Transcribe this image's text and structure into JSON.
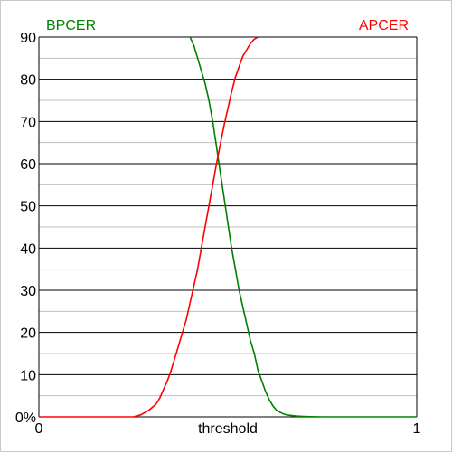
{
  "chart_data": {
    "type": "line",
    "title": "",
    "xlabel": "threshold",
    "ylabel": "",
    "xlim": [
      0,
      1
    ],
    "ylim": [
      0,
      90
    ],
    "x_ticks": [
      {
        "value": 0,
        "label": "0"
      },
      {
        "value": 1,
        "label": "1"
      }
    ],
    "y_ticks": [
      {
        "value": 0,
        "label": "0%"
      },
      {
        "value": 10,
        "label": "10"
      },
      {
        "value": 20,
        "label": "20"
      },
      {
        "value": 30,
        "label": "30"
      },
      {
        "value": 40,
        "label": "40"
      },
      {
        "value": 50,
        "label": "50"
      },
      {
        "value": 60,
        "label": "60"
      },
      {
        "value": 70,
        "label": "70"
      },
      {
        "value": 80,
        "label": "80"
      },
      {
        "value": 90,
        "label": "90"
      }
    ],
    "grid": {
      "major_step": 10,
      "minor_step": 5,
      "major_color": "#000000",
      "minor_color": "#bfbfbf"
    },
    "legend_placement": "top-corners",
    "series": [
      {
        "name": "BPCER",
        "color": "#008000",
        "x": [
          0.4,
          0.41,
          0.42,
          0.43,
          0.44,
          0.45,
          0.46,
          0.47,
          0.48,
          0.49,
          0.5,
          0.51,
          0.52,
          0.53,
          0.54,
          0.55,
          0.56,
          0.57,
          0.58,
          0.59,
          0.6,
          0.61,
          0.62,
          0.63,
          0.64,
          0.65,
          0.66,
          0.67,
          0.68,
          0.7,
          0.72,
          0.75,
          1.0
        ],
        "values": [
          90,
          88,
          85,
          82,
          79,
          75,
          70,
          64,
          58,
          52,
          46,
          40,
          35,
          30,
          26,
          22,
          18,
          15,
          11,
          8.5,
          6,
          4,
          2.5,
          1.5,
          1,
          0.6,
          0.4,
          0.3,
          0.2,
          0.1,
          0.05,
          0,
          0
        ]
      },
      {
        "name": "APCER",
        "color": "#ff0000",
        "x": [
          0.0,
          0.2,
          0.25,
          0.27,
          0.29,
          0.31,
          0.32,
          0.33,
          0.34,
          0.35,
          0.36,
          0.37,
          0.38,
          0.39,
          0.4,
          0.41,
          0.42,
          0.43,
          0.44,
          0.45,
          0.46,
          0.47,
          0.48,
          0.49,
          0.5,
          0.51,
          0.52,
          0.53,
          0.54,
          0.55,
          0.56,
          0.57,
          0.58
        ],
        "values": [
          0,
          0,
          0,
          0.5,
          1.5,
          3,
          4.5,
          6.5,
          8.5,
          11,
          14,
          17,
          20,
          23,
          27,
          31,
          35,
          40,
          45,
          50,
          55,
          60,
          64.5,
          69,
          73,
          77,
          80.5,
          83,
          85.5,
          87,
          88.5,
          89.5,
          90
        ]
      }
    ]
  }
}
